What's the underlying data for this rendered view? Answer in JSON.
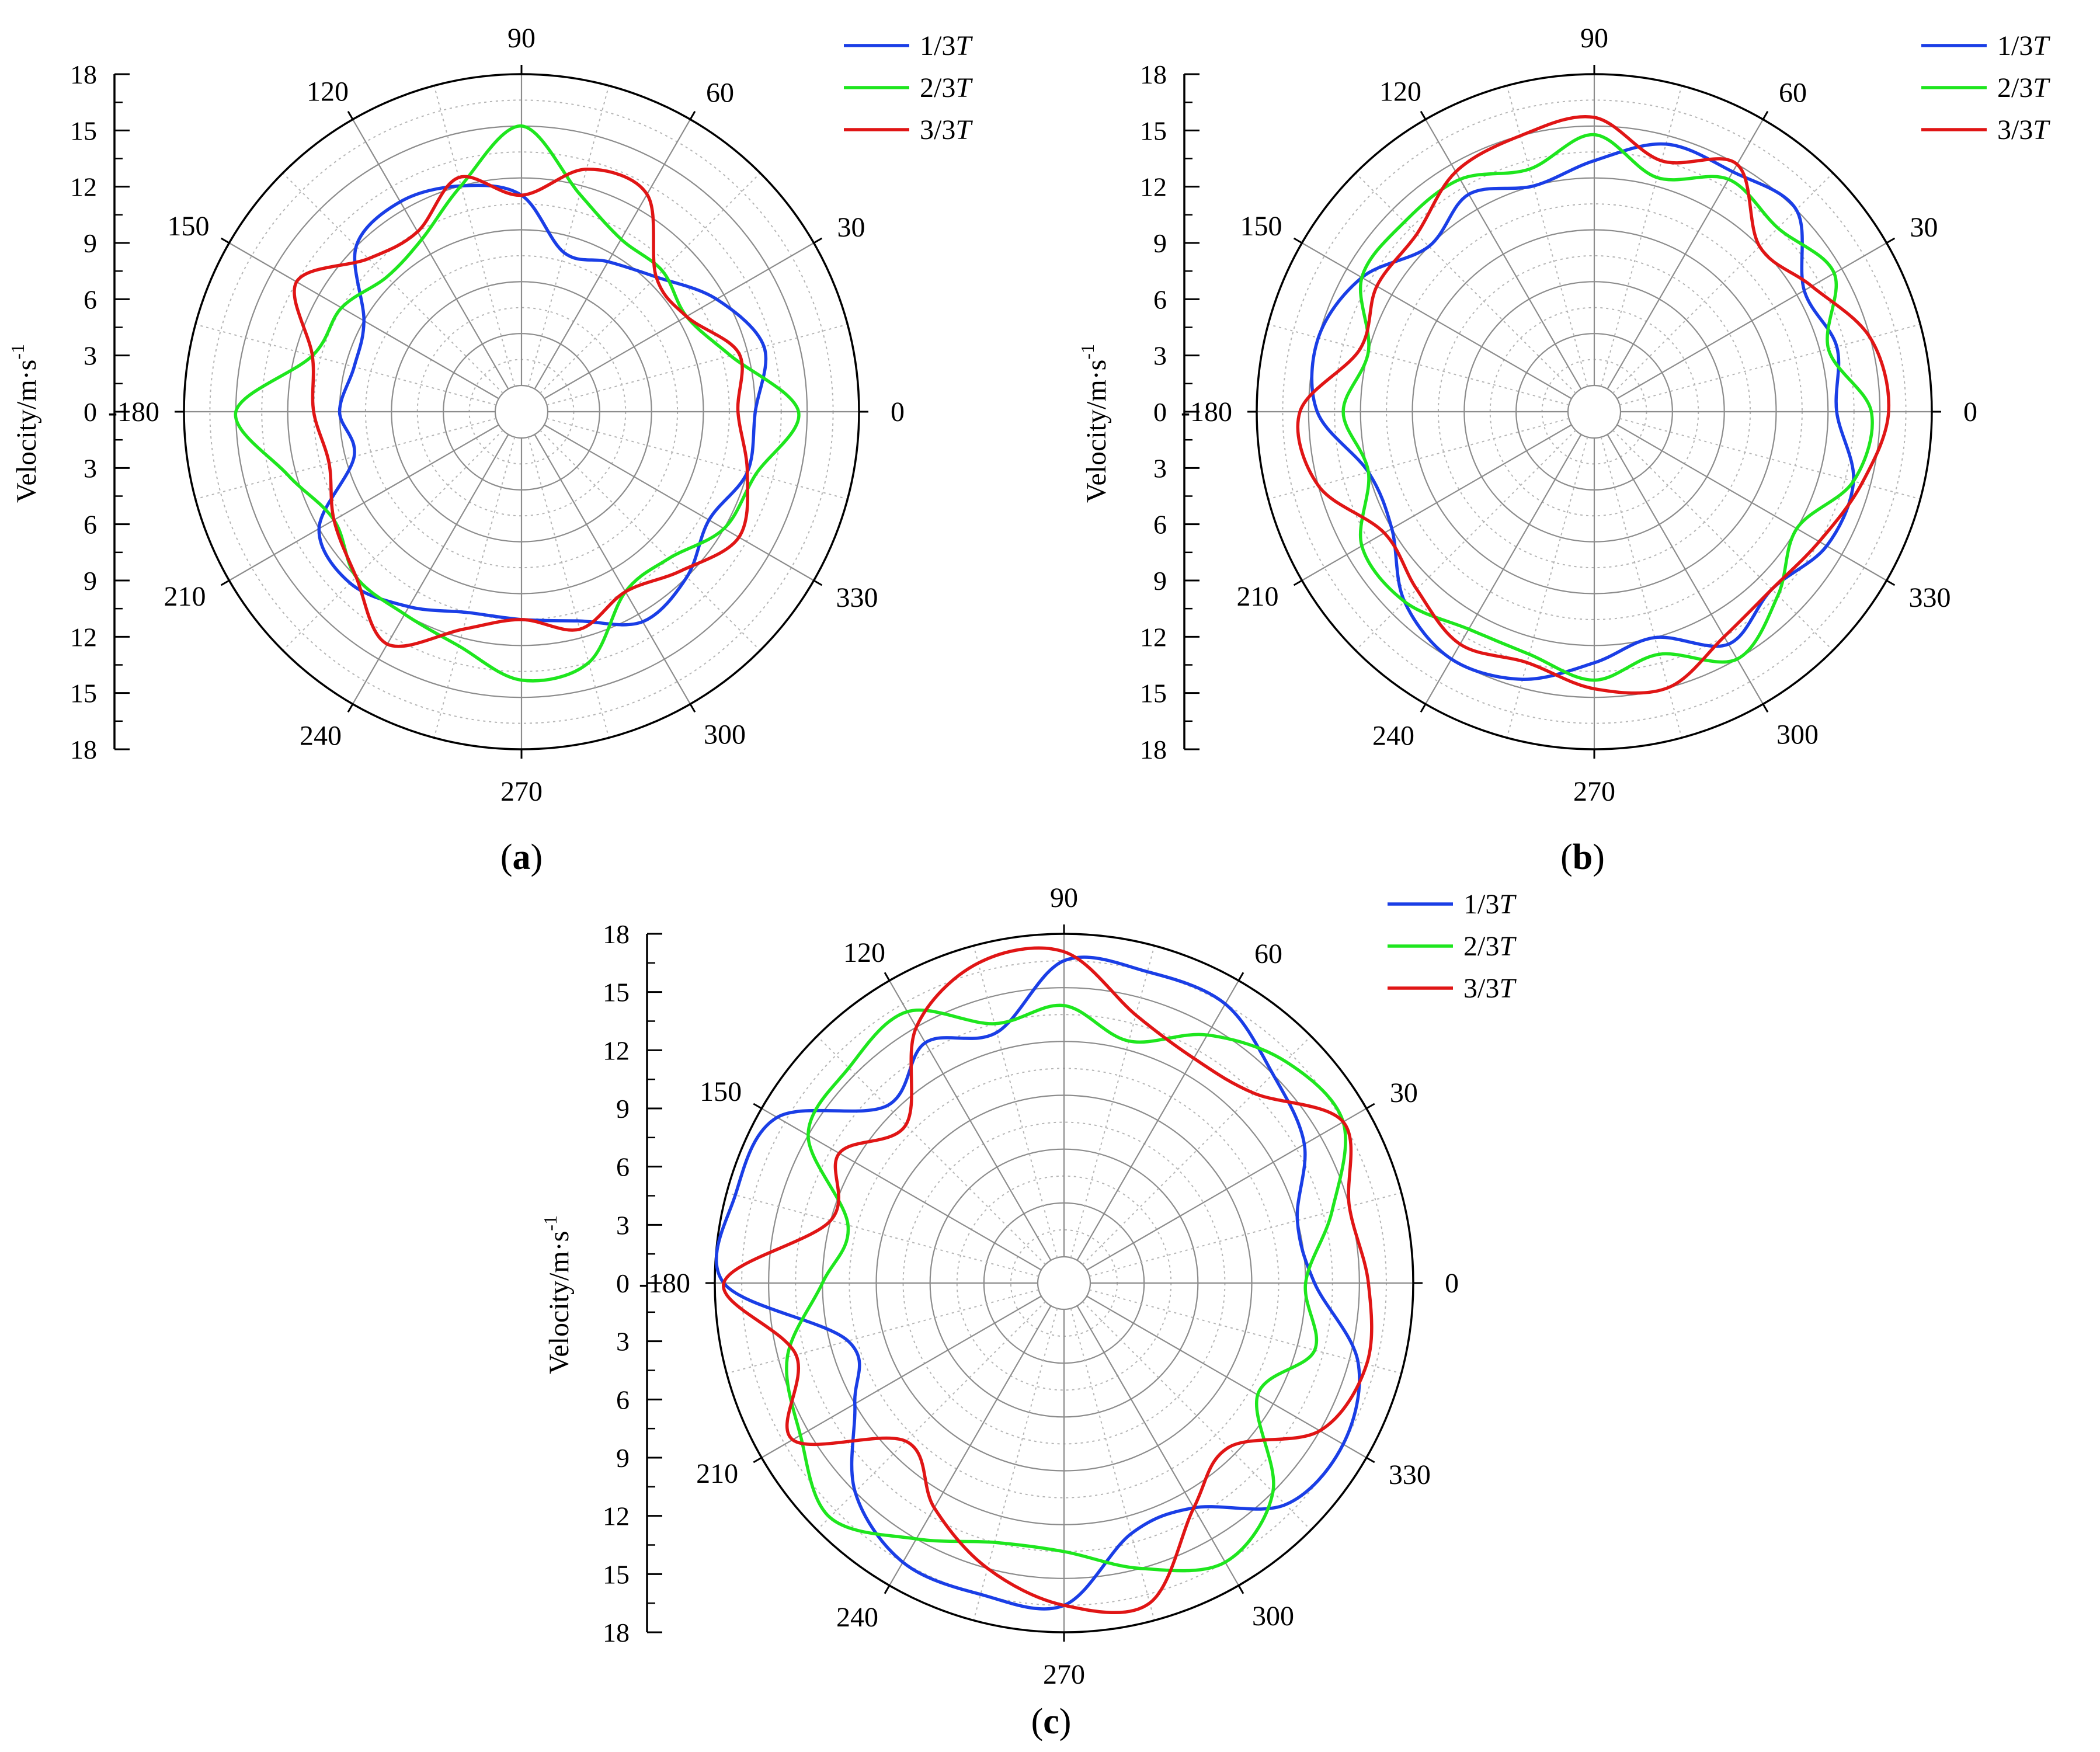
{
  "colors": {
    "s1": "#1a3ee6",
    "s2": "#1ee61e",
    "s3": "#e01515"
  },
  "chart_data": [
    {
      "type": "polar-line",
      "caption": "(a)",
      "ylabel": "Velocity/m·s",
      "ylabel_sup": "-1",
      "radial_ticks": [
        "0",
        "3",
        "6",
        "9",
        "12",
        "15",
        "18"
      ],
      "rlim": [
        0,
        18
      ],
      "angular_ticks": [
        "0",
        "30",
        "60",
        "90",
        "120",
        "150",
        "-180",
        "210",
        "240",
        "270",
        "300",
        "330"
      ],
      "grid": true,
      "legend_position": "top-right",
      "series_labels": [
        "1/3T",
        "2/3T",
        "3/3T"
      ],
      "angles_deg": [
        0,
        15,
        30,
        45,
        60,
        75,
        90,
        105,
        120,
        135,
        150,
        165,
        180,
        195,
        210,
        225,
        240,
        255,
        270,
        285,
        300,
        315,
        330,
        345
      ],
      "series": [
        {
          "name": "1/3T",
          "color": "#1a3ee6",
          "values": [
            12,
            13,
            11.5,
            9.5,
            8.5,
            8,
            11,
            12,
            12.5,
            12,
            9,
            8.5,
            9,
            8.5,
            12,
            12.5,
            11.5,
            10.5,
            10.5,
            11,
            12.5,
            12,
            11,
            12
          ]
        },
        {
          "name": "2/3T",
          "color": "#1ee61e",
          "values": [
            14.5,
            11,
            9.5,
            10,
            10,
            11.5,
            15,
            12,
            10,
            9.5,
            10.5,
            11,
            15,
            12.5,
            11,
            12,
            12,
            12.5,
            14,
            13.5,
            10.5,
            10.5,
            12,
            12.5
          ]
        },
        {
          "name": "3/3T",
          "color": "#e01515",
          "values": [
            11,
            11.5,
            9.5,
            9.5,
            13,
            13,
            11,
            12.5,
            10.5,
            11,
            13.5,
            11,
            10.5,
            10,
            11,
            12,
            14,
            11.5,
            10.5,
            11.5,
            10.5,
            11.5,
            13,
            12
          ]
        }
      ]
    },
    {
      "type": "polar-line",
      "caption": "(b)",
      "ylabel": "Velocity/m·s",
      "ylabel_sup": "-1",
      "radial_ticks": [
        "0",
        "3",
        "6",
        "9",
        "12",
        "15",
        "18"
      ],
      "rlim": [
        0,
        18
      ],
      "angular_ticks": [
        "0",
        "30",
        "60",
        "90",
        "120",
        "150",
        "-180",
        "210",
        "240",
        "270",
        "300",
        "330"
      ],
      "grid": true,
      "legend_position": "top-right",
      "series_labels": [
        "1/3T",
        "2/3T",
        "3/3T"
      ],
      "angles_deg": [
        0,
        15,
        30,
        45,
        60,
        75,
        90,
        105,
        120,
        135,
        150,
        165,
        180,
        195,
        210,
        225,
        240,
        255,
        270,
        285,
        300,
        315,
        330,
        345
      ],
      "series": [
        {
          "name": "1/3T",
          "color": "#1a3ee6",
          "values": [
            12.5,
            13,
            12.5,
            15,
            14.5,
            14.5,
            13,
            12,
            13,
            12,
            14,
            15,
            14.5,
            12,
            12,
            14,
            15,
            14.5,
            13,
            12,
            14,
            13,
            14,
            14
          ]
        },
        {
          "name": "2/3T",
          "color": "#1ee61e",
          "values": [
            14.5,
            12.5,
            14.5,
            13.5,
            14,
            12.5,
            14.5,
            13,
            14,
            14,
            14,
            12,
            13,
            12,
            14,
            14,
            13,
            13,
            14,
            13,
            15,
            13.5,
            12,
            14
          ]
        },
        {
          "name": "3/3T",
          "color": "#e01515",
          "values": [
            15.5,
            15,
            13,
            12,
            15,
            13.5,
            15.5,
            15,
            14.5,
            13,
            13,
            12.5,
            15.5,
            15,
            12.5,
            13,
            14,
            13.5,
            14.5,
            15,
            13.5,
            13,
            13.5,
            14.5
          ]
        }
      ]
    },
    {
      "type": "polar-line",
      "caption": "(c)",
      "ylabel": "Velocity/m·s",
      "ylabel_sup": "-1",
      "radial_ticks": [
        "0",
        "3",
        "6",
        "9",
        "12",
        "15",
        "18"
      ],
      "rlim": [
        0,
        18
      ],
      "angular_ticks": [
        "0",
        "30",
        "60",
        "90",
        "120",
        "150",
        "-180",
        "210",
        "240",
        "270",
        "300",
        "330"
      ],
      "grid": true,
      "legend_position": "top-right",
      "series_labels": [
        "1/3T",
        "2/3T",
        "3/3T"
      ],
      "angles_deg": [
        0,
        15,
        30,
        45,
        60,
        75,
        90,
        105,
        120,
        135,
        150,
        165,
        180,
        195,
        210,
        225,
        240,
        255,
        270,
        285,
        300,
        315,
        330,
        345
      ],
      "series": [
        {
          "name": "1/3T",
          "color": "#1a3ee6",
          "values": [
            12.5,
            12,
            14,
            15,
            16.5,
            16.5,
            16.5,
            13,
            14,
            12.5,
            17,
            17.5,
            17.5,
            11,
            12,
            15,
            16.5,
            16.5,
            16.5,
            13,
            13,
            16,
            16.5,
            15.5
          ]
        },
        {
          "name": "2/3T",
          "color": "#1ee61e",
          "values": [
            12,
            14,
            16.5,
            16,
            14.5,
            12.5,
            14,
            13.5,
            16,
            15.5,
            15,
            11,
            12,
            14.5,
            15.5,
            17,
            15,
            13.5,
            13.5,
            15,
            16.5,
            15,
            11,
            13
          ]
        },
        {
          "name": "3/3T",
          "color": "#e01515",
          "values": [
            15.5,
            15,
            16.5,
            13.5,
            13,
            14,
            17,
            17,
            15,
            11,
            13,
            12,
            17.5,
            14,
            16,
            11,
            13,
            15,
            16.5,
            17,
            13,
            11.5,
            15,
            16
          ]
        }
      ]
    }
  ]
}
